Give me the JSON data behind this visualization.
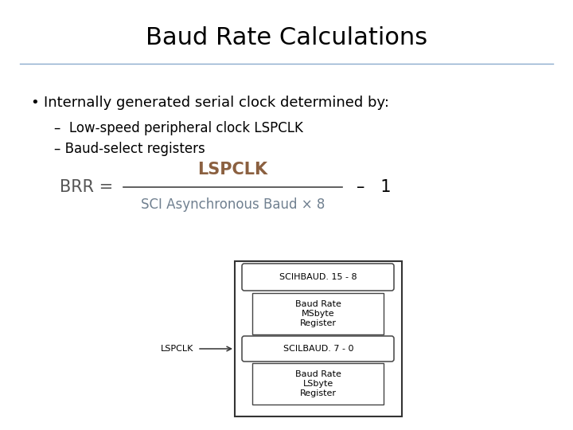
{
  "title": "Baud Rate Calculations",
  "title_fontsize": 22,
  "background_color": "#ffffff",
  "line_color": "#8aaacc",
  "bullet_text": "Internally generated serial clock determined by:",
  "sub1": "Low-speed peripheral clock LSPCLK",
  "sub2": "Baud-select registers",
  "formula_color_brr": "#555555",
  "formula_color_num": "#8b6040",
  "formula_color_den": "#708090",
  "scihbaud_label": "SCIHBAUD. 15 - 8",
  "scilbaud_label": "SCILBAUD. 7 - 0",
  "msbyte_label": "Baud Rate\nMSbyte\nRegister",
  "lsbyte_label": "Baud Rate\nLSbyte\nRegister"
}
